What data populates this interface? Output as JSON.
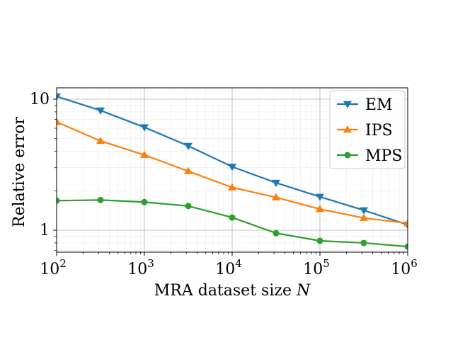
{
  "chart_data": {
    "type": "line",
    "x_scale": "log",
    "y_scale": "log",
    "xlim": [
      100,
      1000000
    ],
    "ylim": [
      0.68,
      12.2
    ],
    "grid": "major and minor",
    "legend_position": "top-right",
    "xlabel_main": "MRA dataset size ",
    "xlabel_var": "N",
    "ylabel": "Relative error",
    "x_ticks": [
      {
        "value": 100,
        "base": "10",
        "exp": "2"
      },
      {
        "value": 1000,
        "base": "10",
        "exp": "3"
      },
      {
        "value": 10000,
        "base": "10",
        "exp": "4"
      },
      {
        "value": 100000,
        "base": "10",
        "exp": "5"
      },
      {
        "value": 1000000,
        "base": "10",
        "exp": "6"
      }
    ],
    "y_ticks": [
      {
        "value": 1,
        "label": "1"
      },
      {
        "value": 10,
        "label": "10"
      }
    ],
    "x": [
      100,
      316,
      1000,
      3162,
      10000,
      31623,
      100000,
      316228,
      1000000
    ],
    "series": [
      {
        "name": "EM",
        "color": "#1f77b4",
        "marker": "triangle-down",
        "values": [
          10.5,
          8.2,
          6.1,
          4.4,
          3.05,
          2.3,
          1.8,
          1.42,
          1.1
        ]
      },
      {
        "name": "IPS",
        "color": "#ff7f0e",
        "marker": "triangle-up",
        "values": [
          6.7,
          4.8,
          3.75,
          2.82,
          2.12,
          1.78,
          1.45,
          1.24,
          1.13
        ]
      },
      {
        "name": "MPS",
        "color": "#2ca02c",
        "marker": "circle",
        "values": [
          1.68,
          1.7,
          1.64,
          1.53,
          1.25,
          0.95,
          0.83,
          0.8,
          0.75
        ]
      }
    ]
  }
}
